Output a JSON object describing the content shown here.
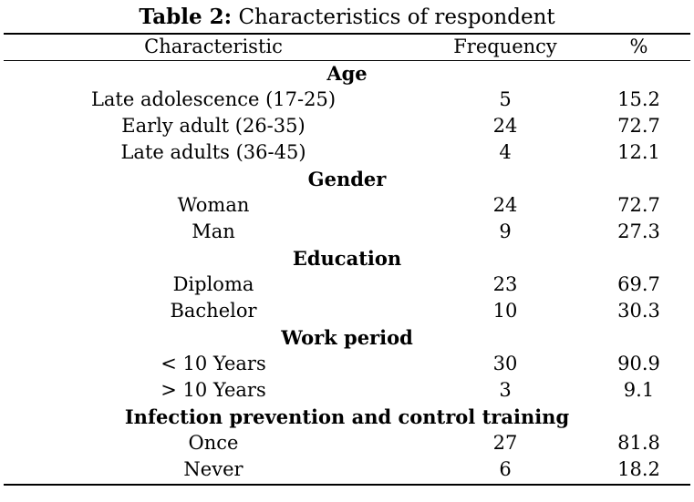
{
  "caption": {
    "lead": "Table 2:",
    "text": " Characteristics of respondent"
  },
  "columns": [
    "Characteristic",
    "Frequency",
    "%"
  ],
  "groups": [
    {
      "title": "Age",
      "rows": [
        {
          "label": "Late adolescence (17-25)",
          "frequency": "5",
          "percent": "15.2"
        },
        {
          "label": "Early adult (26-35)",
          "frequency": "24",
          "percent": "72.7"
        },
        {
          "label": "Late adults (36-45)",
          "frequency": "4",
          "percent": "12.1"
        }
      ]
    },
    {
      "title": "Gender",
      "rows": [
        {
          "label": "Woman",
          "frequency": "24",
          "percent": "72.7"
        },
        {
          "label": "Man",
          "frequency": "9",
          "percent": "27.3"
        }
      ]
    },
    {
      "title": "Education",
      "rows": [
        {
          "label": "Diploma",
          "frequency": "23",
          "percent": "69.7"
        },
        {
          "label": "Bachelor",
          "frequency": "10",
          "percent": "30.3"
        }
      ]
    },
    {
      "title": "Work period",
      "rows": [
        {
          "label": "< 10 Years",
          "frequency": "30",
          "percent": "90.9"
        },
        {
          "label": "> 10 Years",
          "frequency": "3",
          "percent": "9.1"
        }
      ]
    },
    {
      "title": "Infection prevention and control training",
      "rows": [
        {
          "label": "Once",
          "frequency": "27",
          "percent": "81.8"
        },
        {
          "label": "Never",
          "frequency": "6",
          "percent": "18.2"
        }
      ]
    }
  ]
}
